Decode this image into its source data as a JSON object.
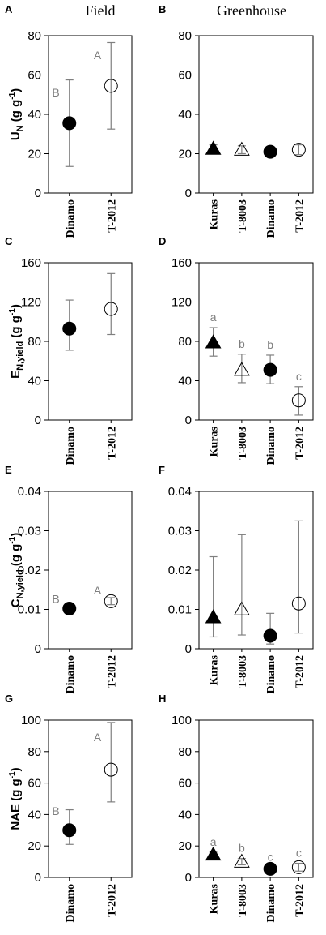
{
  "column_titles": {
    "left": "Field",
    "right": "Greenhouse"
  },
  "colors": {
    "marker_fill": "#000000",
    "errorbar": "#7f7f7f",
    "axis": "#000000",
    "letter": "#7f7f7f"
  },
  "chart_data": [
    {
      "id": "A",
      "panel_letter": "A",
      "type": "scatter",
      "column": "left",
      "ylabel_main": "U",
      "ylabel_sub": "N",
      "ylabel_unit": " (g g",
      "ylabel_sup": "-1",
      "ylabel_close": ")",
      "ylim": [
        0,
        80
      ],
      "yticks": [
        "0",
        "20",
        "40",
        "60",
        "80"
      ],
      "ytick_values": [
        0,
        20,
        40,
        60,
        80
      ],
      "categories": [
        "Dinamo",
        "T-2012"
      ],
      "points": [
        {
          "category": "Dinamo",
          "y": 35.5,
          "err_low": 13.5,
          "err_high": 57.5,
          "marker": "filled-circle",
          "letter": "B"
        },
        {
          "category": "T-2012",
          "y": 54.5,
          "err_low": 32.5,
          "err_high": 76.5,
          "marker": "open-circle",
          "letter": "A"
        }
      ]
    },
    {
      "id": "B",
      "panel_letter": "B",
      "type": "scatter",
      "column": "right",
      "ylim": [
        0,
        80
      ],
      "yticks": [
        "0",
        "20",
        "40",
        "60",
        "80"
      ],
      "ytick_values": [
        0,
        20,
        40,
        60,
        80
      ],
      "categories": [
        "Kuras",
        "T-8003",
        "Dinamo",
        "T-2012"
      ],
      "points": [
        {
          "category": "Kuras",
          "y": 22.5,
          "err_low": 21.0,
          "err_high": 24.5,
          "marker": "filled-triangle",
          "letter": ""
        },
        {
          "category": "T-8003",
          "y": 22.0,
          "err_low": 20.0,
          "err_high": 24.0,
          "marker": "open-triangle",
          "letter": ""
        },
        {
          "category": "Dinamo",
          "y": 21.0,
          "err_low": 20.0,
          "err_high": 22.0,
          "marker": "filled-circle",
          "letter": ""
        },
        {
          "category": "T-2012",
          "y": 22.0,
          "err_low": 19.5,
          "err_high": 24.5,
          "marker": "open-circle",
          "letter": ""
        }
      ]
    },
    {
      "id": "C",
      "panel_letter": "C",
      "type": "scatter",
      "column": "left",
      "ylabel_main": "E",
      "ylabel_sub": "N,yield",
      "ylabel_unit": " (g g",
      "ylabel_sup": "-1",
      "ylabel_close": ")",
      "ylim": [
        0,
        160
      ],
      "yticks": [
        "0",
        "40",
        "80",
        "120",
        "160"
      ],
      "ytick_values": [
        0,
        40,
        80,
        120,
        160
      ],
      "categories": [
        "Dinamo",
        "T-2012"
      ],
      "points": [
        {
          "category": "Dinamo",
          "y": 93,
          "err_low": 71,
          "err_high": 122,
          "marker": "filled-circle",
          "letter": ""
        },
        {
          "category": "T-2012",
          "y": 113,
          "err_low": 87,
          "err_high": 149,
          "marker": "open-circle",
          "letter": ""
        }
      ]
    },
    {
      "id": "D",
      "panel_letter": "D",
      "type": "scatter",
      "column": "right",
      "ylim": [
        0,
        160
      ],
      "yticks": [
        "0",
        "40",
        "80",
        "120",
        "160"
      ],
      "ytick_values": [
        0,
        40,
        80,
        120,
        160
      ],
      "categories": [
        "Kuras",
        "T-8003",
        "Dinamo",
        "T-2012"
      ],
      "points": [
        {
          "category": "Kuras",
          "y": 79,
          "err_low": 65,
          "err_high": 94,
          "marker": "filled-triangle",
          "letter": "a"
        },
        {
          "category": "T-8003",
          "y": 51,
          "err_low": 38,
          "err_high": 67,
          "marker": "open-triangle",
          "letter": "b"
        },
        {
          "category": "Dinamo",
          "y": 51,
          "err_low": 37,
          "err_high": 66,
          "marker": "filled-circle",
          "letter": "b"
        },
        {
          "category": "T-2012",
          "y": 20,
          "err_low": 5,
          "err_high": 34,
          "marker": "open-circle",
          "letter": "c"
        }
      ]
    },
    {
      "id": "E",
      "panel_letter": "E",
      "type": "scatter",
      "column": "left",
      "ylabel_main": "C",
      "ylabel_sub": "N,yield",
      "ylabel_unit": " (g g",
      "ylabel_sup": "-1",
      "ylabel_close": ")",
      "ylim": [
        0,
        0.04
      ],
      "yticks": [
        "0",
        "0.01",
        "0.02",
        "0.03",
        "0.04"
      ],
      "ytick_values": [
        0,
        0.01,
        0.02,
        0.03,
        0.04
      ],
      "categories": [
        "Dinamo",
        "T-2012"
      ],
      "points": [
        {
          "category": "Dinamo",
          "y": 0.0102,
          "err_low": 0.0097,
          "err_high": 0.0107,
          "marker": "filled-circle",
          "letter": "B"
        },
        {
          "category": "T-2012",
          "y": 0.0121,
          "err_low": 0.0112,
          "err_high": 0.013,
          "marker": "open-circle",
          "letter": "A"
        }
      ]
    },
    {
      "id": "F",
      "panel_letter": "F",
      "type": "scatter",
      "column": "right",
      "ylim": [
        0,
        0.04
      ],
      "yticks": [
        "0",
        "0.01",
        "0.02",
        "0.03",
        "0.04"
      ],
      "ytick_values": [
        0,
        0.01,
        0.02,
        0.03,
        0.04
      ],
      "categories": [
        "Kuras",
        "T-8003",
        "Dinamo",
        "T-2012"
      ],
      "points": [
        {
          "category": "Kuras",
          "y": 0.008,
          "err_low": 0.003,
          "err_high": 0.0234,
          "marker": "filled-triangle",
          "letter": ""
        },
        {
          "category": "T-8003",
          "y": 0.01,
          "err_low": 0.0035,
          "err_high": 0.029,
          "marker": "open-triangle",
          "letter": ""
        },
        {
          "category": "Dinamo",
          "y": 0.0033,
          "err_low": 0.0012,
          "err_high": 0.009,
          "marker": "filled-circle",
          "letter": ""
        },
        {
          "category": "T-2012",
          "y": 0.0115,
          "err_low": 0.004,
          "err_high": 0.0325,
          "marker": "open-circle",
          "letter": ""
        }
      ]
    },
    {
      "id": "G",
      "panel_letter": "G",
      "type": "scatter",
      "column": "left",
      "ylabel_main": "NAE",
      "ylabel_sub": "",
      "ylabel_unit": " (g g",
      "ylabel_sup": "-1",
      "ylabel_close": ")",
      "ylim": [
        0,
        100
      ],
      "yticks": [
        "0",
        "20",
        "40",
        "60",
        "80",
        "100"
      ],
      "ytick_values": [
        0,
        20,
        40,
        60,
        80,
        100
      ],
      "categories": [
        "Dinamo",
        "T-2012"
      ],
      "points": [
        {
          "category": "Dinamo",
          "y": 30,
          "err_low": 21,
          "err_high": 43,
          "marker": "filled-circle",
          "letter": "B"
        },
        {
          "category": "T-2012",
          "y": 68.5,
          "err_low": 48,
          "err_high": 98.5,
          "marker": "open-circle",
          "letter": "A"
        }
      ]
    },
    {
      "id": "H",
      "panel_letter": "H",
      "type": "scatter",
      "column": "right",
      "ylim": [
        0,
        100
      ],
      "yticks": [
        "0",
        "20",
        "40",
        "60",
        "80",
        "100"
      ],
      "ytick_values": [
        0,
        20,
        40,
        60,
        80,
        100
      ],
      "categories": [
        "Kuras",
        "T-8003",
        "Dinamo",
        "T-2012"
      ],
      "points": [
        {
          "category": "Kuras",
          "y": 14.5,
          "err_low": 13.5,
          "err_high": 16,
          "marker": "filled-triangle",
          "letter": "a"
        },
        {
          "category": "T-8003",
          "y": 10,
          "err_low": 8,
          "err_high": 12,
          "marker": "open-triangle",
          "letter": "b"
        },
        {
          "category": "Dinamo",
          "y": 5.5,
          "err_low": 4.5,
          "err_high": 6.5,
          "marker": "filled-circle",
          "letter": "c"
        },
        {
          "category": "T-2012",
          "y": 6.5,
          "err_low": 4,
          "err_high": 9,
          "marker": "open-circle",
          "letter": "c"
        }
      ]
    }
  ]
}
